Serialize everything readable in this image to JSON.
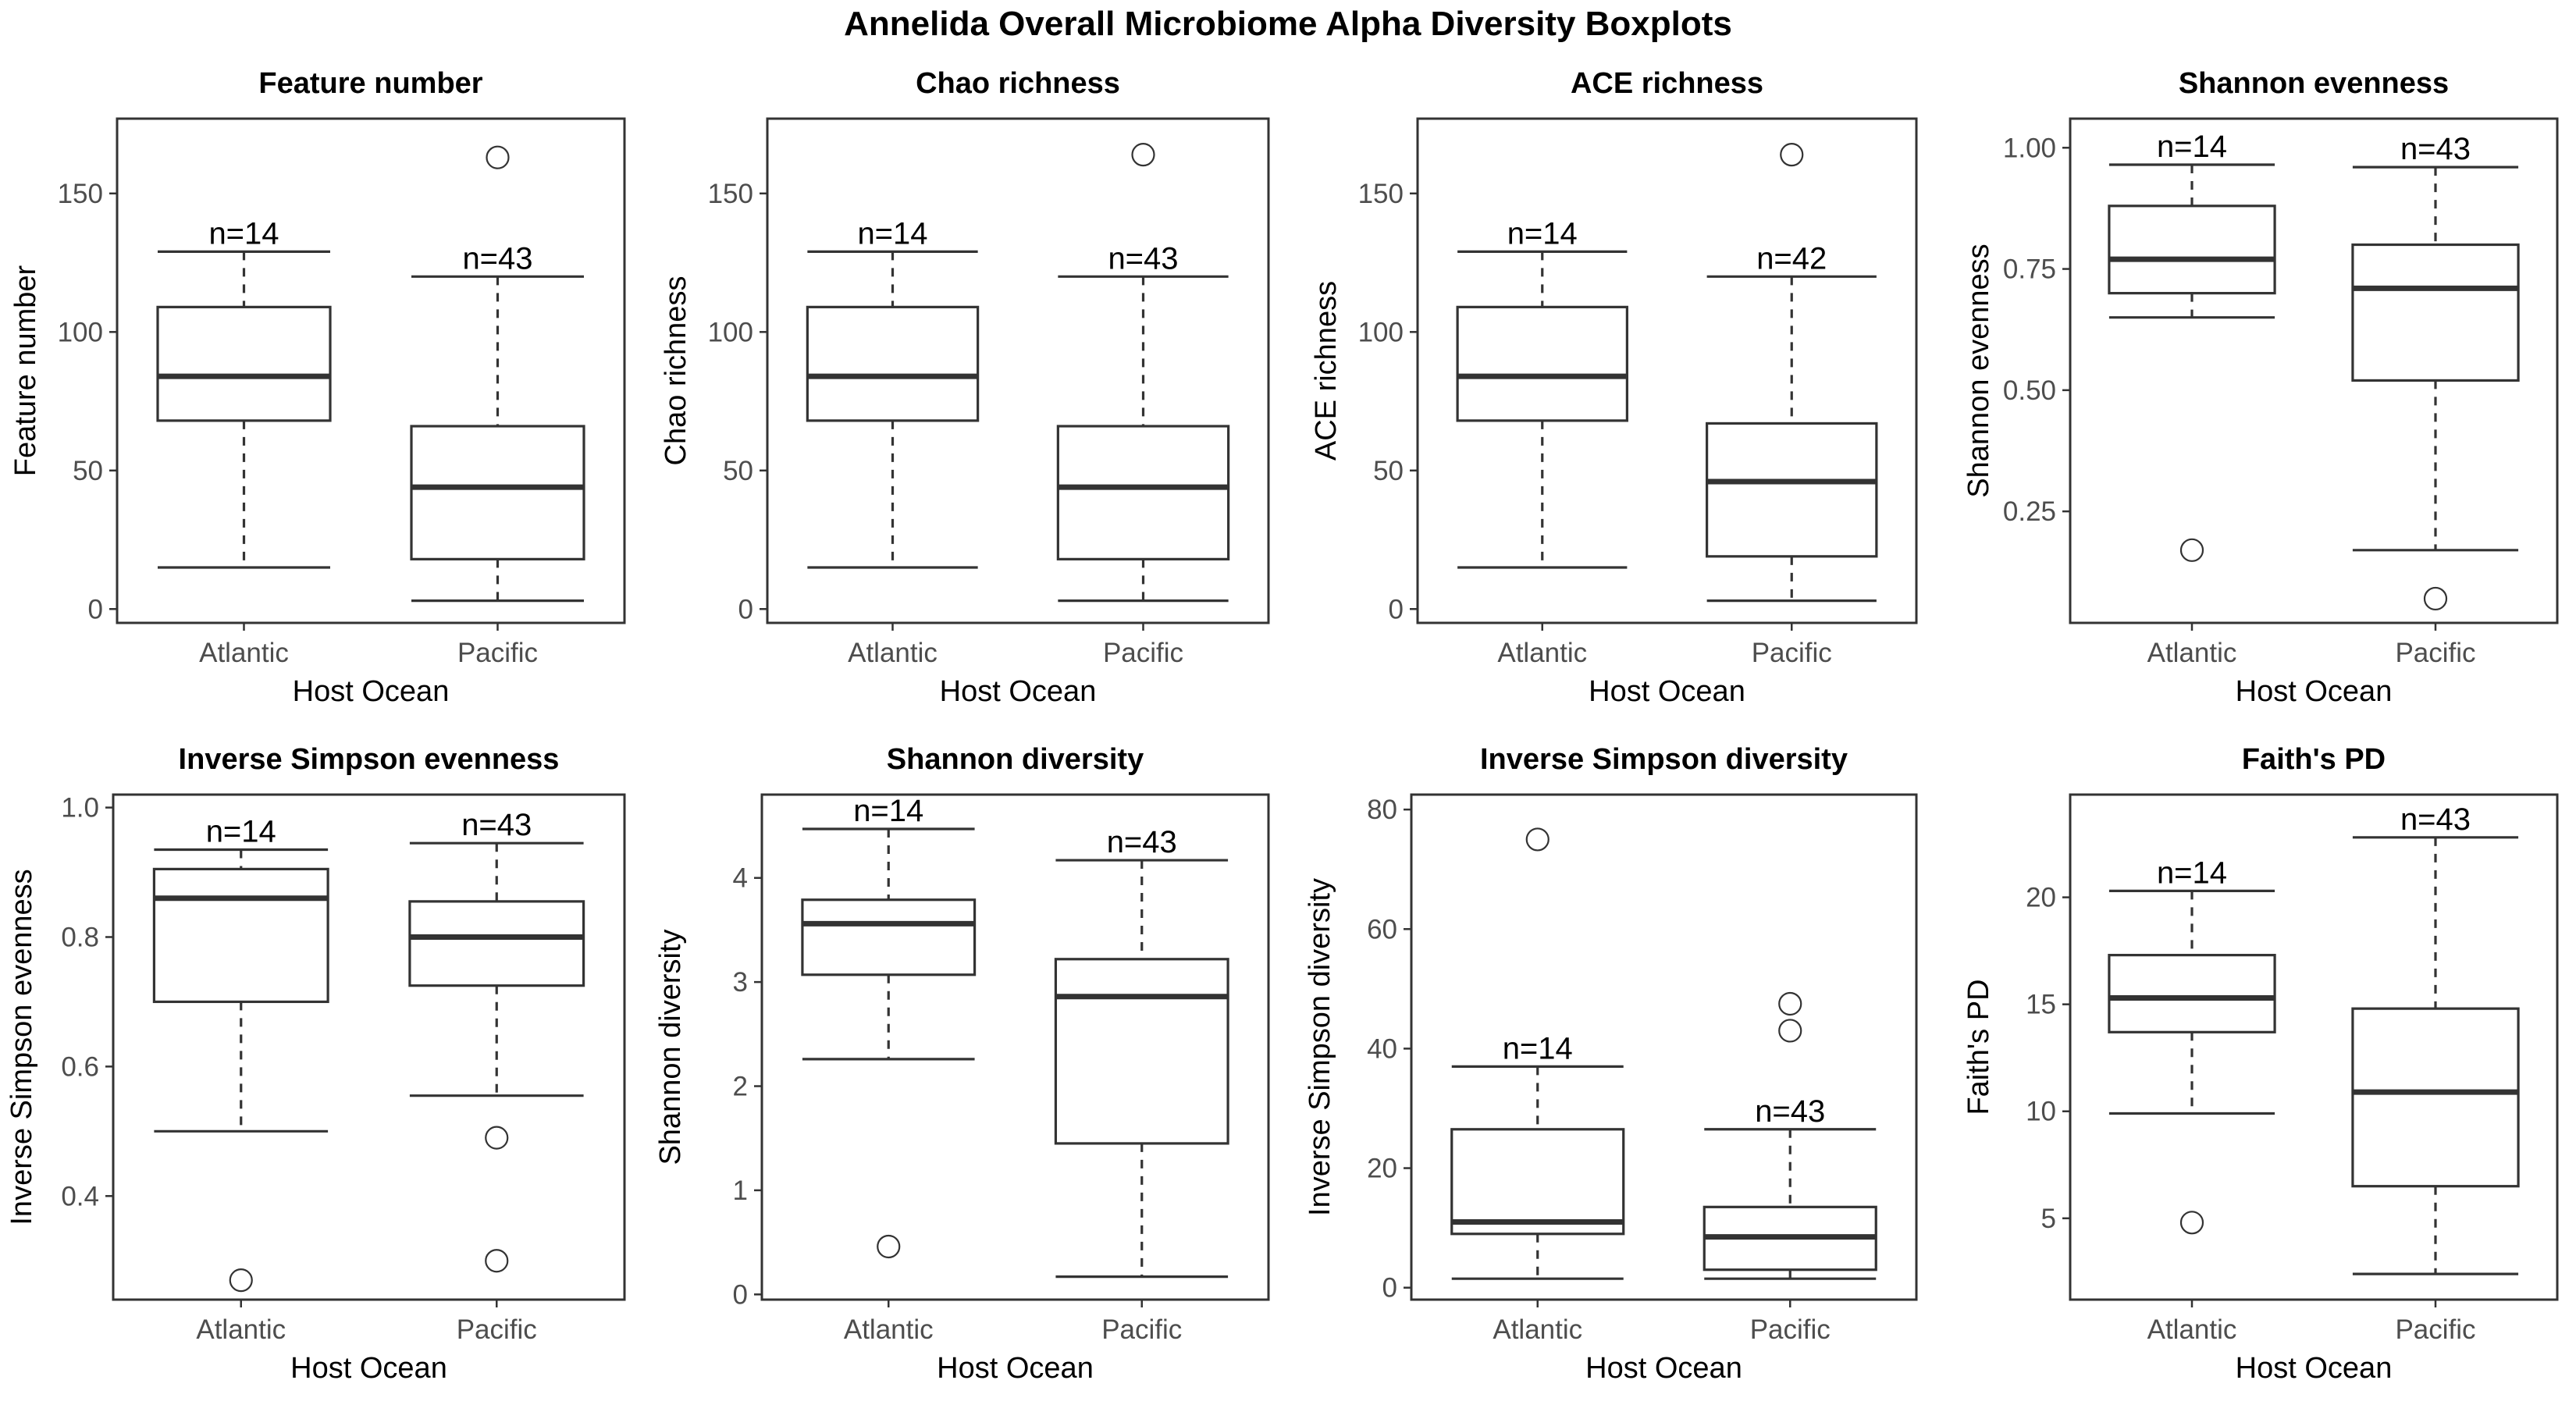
{
  "title": "Annelida Overall Microbiome Alpha Diversity Boxplots",
  "chart_data": [
    {
      "type": "box",
      "title": "Feature number",
      "xlabel": "Host Ocean",
      "ylabel": "Feature number",
      "categories": [
        "Atlantic",
        "Pacific"
      ],
      "ylim": [
        -5,
        177
      ],
      "yticks": [
        0,
        50,
        100,
        150
      ],
      "boxes": [
        {
          "category": "Atlantic",
          "n": "n=14",
          "whisker_low": 15,
          "q1": 68,
          "median": 84,
          "q3": 109,
          "whisker_high": 129,
          "outliers": []
        },
        {
          "category": "Pacific",
          "n": "n=43",
          "whisker_low": 3,
          "q1": 18,
          "median": 44,
          "q3": 66,
          "whisker_high": 120,
          "outliers": [
            163
          ]
        }
      ]
    },
    {
      "type": "box",
      "title": "Chao richness",
      "xlabel": "Host Ocean",
      "ylabel": "Chao richness",
      "categories": [
        "Atlantic",
        "Pacific"
      ],
      "ylim": [
        -5,
        177
      ],
      "yticks": [
        0,
        50,
        100,
        150
      ],
      "boxes": [
        {
          "category": "Atlantic",
          "n": "n=14",
          "whisker_low": 15,
          "q1": 68,
          "median": 84,
          "q3": 109,
          "whisker_high": 129,
          "outliers": []
        },
        {
          "category": "Pacific",
          "n": "n=43",
          "whisker_low": 3,
          "q1": 18,
          "median": 44,
          "q3": 66,
          "whisker_high": 120,
          "outliers": [
            164
          ]
        }
      ]
    },
    {
      "type": "box",
      "title": "ACE richness",
      "xlabel": "Host Ocean",
      "ylabel": "ACE richness",
      "categories": [
        "Atlantic",
        "Pacific"
      ],
      "ylim": [
        -5,
        177
      ],
      "yticks": [
        0,
        50,
        100,
        150
      ],
      "boxes": [
        {
          "category": "Atlantic",
          "n": "n=14",
          "whisker_low": 15,
          "q1": 68,
          "median": 84,
          "q3": 109,
          "whisker_high": 129,
          "outliers": []
        },
        {
          "category": "Pacific",
          "n": "n=42",
          "whisker_low": 3,
          "q1": 19,
          "median": 46,
          "q3": 67,
          "whisker_high": 120,
          "outliers": [
            164
          ]
        }
      ]
    },
    {
      "type": "box",
      "title": "Shannon evenness",
      "xlabel": "Host Ocean",
      "ylabel": "Shannon evenness",
      "categories": [
        "Atlantic",
        "Pacific"
      ],
      "ylim": [
        0.02,
        1.06
      ],
      "yticks": [
        0.25,
        0.5,
        0.75,
        1.0
      ],
      "ytick_labels": [
        "0.25",
        "0.50",
        "0.75",
        "1.00"
      ],
      "boxes": [
        {
          "category": "Atlantic",
          "n": "n=14",
          "whisker_low": 0.65,
          "q1": 0.7,
          "median": 0.77,
          "q3": 0.88,
          "whisker_high": 0.965,
          "outliers": [
            0.17
          ]
        },
        {
          "category": "Pacific",
          "n": "n=43",
          "whisker_low": 0.17,
          "q1": 0.52,
          "median": 0.71,
          "q3": 0.8,
          "whisker_high": 0.96,
          "outliers": [
            0.07
          ]
        }
      ]
    },
    {
      "type": "box",
      "title": "Inverse Simpson evenness",
      "xlabel": "Host Ocean",
      "ylabel": "Inverse Simpson evenness",
      "categories": [
        "Atlantic",
        "Pacific"
      ],
      "ylim": [
        0.24,
        1.02
      ],
      "yticks": [
        0.4,
        0.6,
        0.8,
        1.0
      ],
      "ytick_labels": [
        "0.4",
        "0.6",
        "0.8",
        "1.0"
      ],
      "boxes": [
        {
          "category": "Atlantic",
          "n": "n=14",
          "whisker_low": 0.5,
          "q1": 0.7,
          "median": 0.86,
          "q3": 0.905,
          "whisker_high": 0.935,
          "outliers": [
            0.27
          ]
        },
        {
          "category": "Pacific",
          "n": "n=43",
          "whisker_low": 0.555,
          "q1": 0.725,
          "median": 0.8,
          "q3": 0.855,
          "whisker_high": 0.945,
          "outliers": [
            0.49,
            0.3
          ]
        }
      ]
    },
    {
      "type": "box",
      "title": "Shannon diversity",
      "xlabel": "Host Ocean",
      "ylabel": "Shannon diversity",
      "categories": [
        "Atlantic",
        "Pacific"
      ],
      "ylim": [
        -0.05,
        4.8
      ],
      "yticks": [
        0,
        1,
        2,
        3,
        4
      ],
      "boxes": [
        {
          "category": "Atlantic",
          "n": "n=14",
          "whisker_low": 2.26,
          "q1": 3.07,
          "median": 3.56,
          "q3": 3.79,
          "whisker_high": 4.47,
          "outliers": [
            0.46
          ]
        },
        {
          "category": "Pacific",
          "n": "n=43",
          "whisker_low": 0.17,
          "q1": 1.45,
          "median": 2.86,
          "q3": 3.22,
          "whisker_high": 4.17,
          "outliers": []
        }
      ]
    },
    {
      "type": "box",
      "title": "Inverse Simpson diversity",
      "xlabel": "Host Ocean",
      "ylabel": "Inverse Simpson diversity",
      "categories": [
        "Atlantic",
        "Pacific"
      ],
      "ylim": [
        -2,
        82.5
      ],
      "yticks": [
        0,
        20,
        40,
        60,
        80
      ],
      "boxes": [
        {
          "category": "Atlantic",
          "n": "n=14",
          "whisker_low": 1.5,
          "q1": 9,
          "median": 11,
          "q3": 26.5,
          "whisker_high": 37,
          "outliers": [
            75
          ]
        },
        {
          "category": "Pacific",
          "n": "n=43",
          "whisker_low": 1.5,
          "q1": 3,
          "median": 8.5,
          "q3": 13.5,
          "whisker_high": 26.5,
          "outliers": [
            47.5,
            43
          ]
        }
      ]
    },
    {
      "type": "box",
      "title": "Faith's PD",
      "xlabel": "Host Ocean",
      "ylabel": "Faith's PD",
      "categories": [
        "Atlantic",
        "Pacific"
      ],
      "ylim": [
        1.2,
        24.8
      ],
      "yticks": [
        5,
        10,
        15,
        20
      ],
      "boxes": [
        {
          "category": "Atlantic",
          "n": "n=14",
          "whisker_low": 9.9,
          "q1": 13.7,
          "median": 15.3,
          "q3": 17.3,
          "whisker_high": 20.3,
          "outliers": [
            4.8
          ]
        },
        {
          "category": "Pacific",
          "n": "n=43",
          "whisker_low": 2.4,
          "q1": 6.5,
          "median": 10.9,
          "q3": 14.8,
          "whisker_high": 22.8,
          "outliers": []
        }
      ]
    }
  ]
}
